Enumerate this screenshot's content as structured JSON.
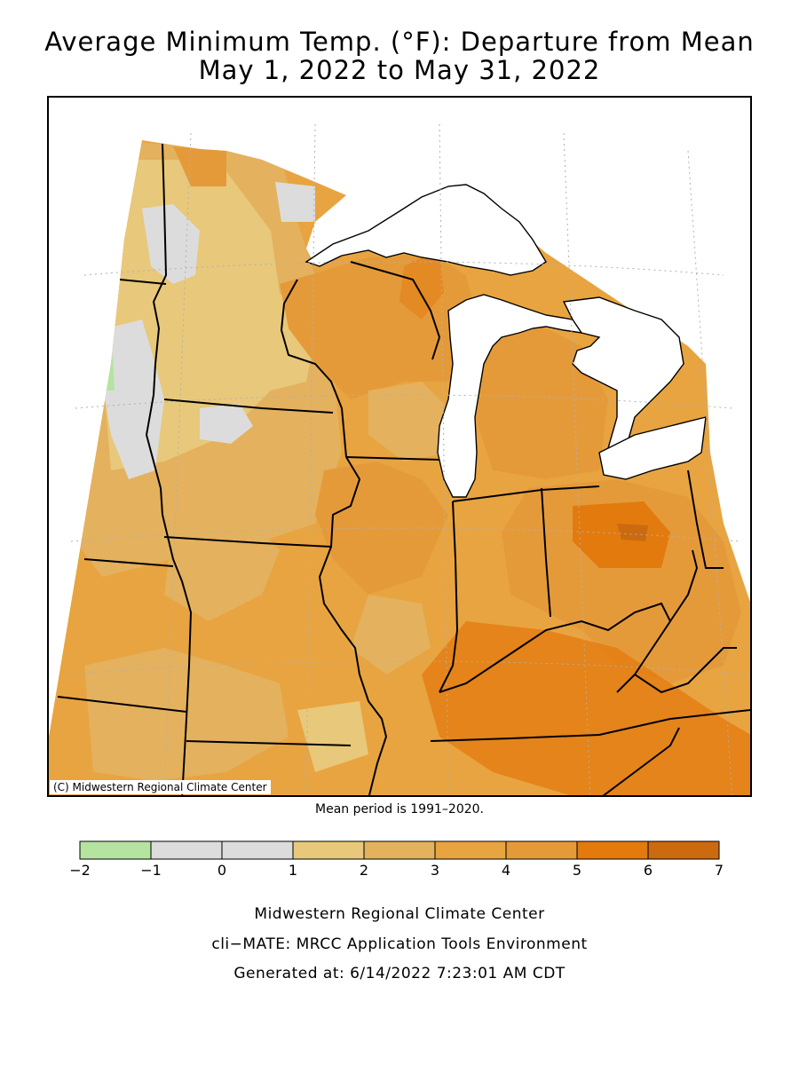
{
  "map": {
    "title_line1": "Average Minimum Temp. (°F): Departure from Mean",
    "title_line2": "May 1, 2022 to May 31, 2022",
    "copyright": "(C) Midwestern Regional Climate Center",
    "mean_note": "Mean period is 1991–2020.",
    "colors": {
      "water": "#ffffff",
      "base": "#e8a440",
      "light": "#e8c87a",
      "mid": "#e4b15e",
      "warm": "#e59a3a",
      "hot": "#e37a0e",
      "hotter": "#cc6a10",
      "gray": "#dcdcdc",
      "green": "#b4e4a0",
      "border": "#000000",
      "grid": "#b0b0b0"
    }
  },
  "legend": {
    "bins": [
      {
        "from": -2,
        "to": -1,
        "color": "#b4e4a0"
      },
      {
        "from": -1,
        "to": 0,
        "color": "#dcdcdc"
      },
      {
        "from": 0,
        "to": 1,
        "color": "#dcdcdc"
      },
      {
        "from": 1,
        "to": 2,
        "color": "#e8c87a"
      },
      {
        "from": 2,
        "to": 3,
        "color": "#e4b15e"
      },
      {
        "from": 3,
        "to": 4,
        "color": "#e8a440"
      },
      {
        "from": 4,
        "to": 5,
        "color": "#e59a3a"
      },
      {
        "from": 5,
        "to": 6,
        "color": "#e37a0e"
      },
      {
        "from": 6,
        "to": 7,
        "color": "#cc6a10"
      }
    ],
    "tick_labels": [
      "−2",
      "−1",
      "0",
      "1",
      "2",
      "3",
      "4",
      "5",
      "6",
      "7"
    ]
  },
  "footer": {
    "line1": "Midwestern Regional Climate Center",
    "line2": "cli−MATE: MRCC Application Tools Environment",
    "line3": "Generated at: 6/14/2022 7:23:01 AM CDT"
  }
}
